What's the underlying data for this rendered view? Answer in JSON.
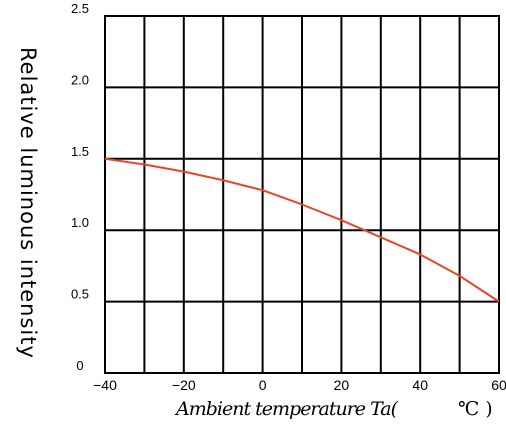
{
  "chart_data": {
    "type": "line",
    "title": "",
    "xlabel": "Ambient temperature Ta(",
    "xunit": "℃ )",
    "ylabel": "Relative luminous intensity",
    "xlim": [
      -40,
      60
    ],
    "ylim": [
      0,
      2.5
    ],
    "x_ticks": [
      "−40",
      "−20",
      "0",
      "20",
      "40",
      "60"
    ],
    "y_ticks": [
      "0",
      "0.5",
      "1.0",
      "1.5",
      "2.0",
      "2.5"
    ],
    "grid": true,
    "line_color": "#e8462a",
    "series": [
      {
        "x": [
          -40,
          -30,
          -20,
          -10,
          0,
          10,
          20,
          30,
          40,
          50,
          60
        ],
        "y": [
          1.5,
          1.46,
          1.41,
          1.35,
          1.28,
          1.18,
          1.07,
          0.95,
          0.83,
          0.68,
          0.5
        ]
      }
    ]
  }
}
